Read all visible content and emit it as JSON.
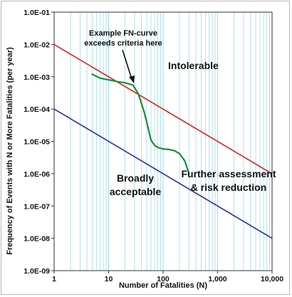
{
  "chart_data": {
    "type": "line",
    "title": "",
    "xlabel": "Number of Fatalities (N)",
    "ylabel": "Frequency of Events with N or More Fatalities (per year)",
    "xscale": "log",
    "yscale": "log",
    "xlim": [
      1,
      10000
    ],
    "ylim": [
      1e-09,
      0.1
    ],
    "x_tick_labels": [
      "1",
      "10",
      "100",
      "1,000",
      "10,000"
    ],
    "y_tick_labels": [
      "1.0E-01",
      "1.0E-02",
      "1.0E-03",
      "1.0E-04",
      "1.0E-05",
      "1.0E-06",
      "1.0E-07",
      "1.0E-08",
      "1.0E-09"
    ],
    "grid": "vertical minor and major lines",
    "series": [
      {
        "color": "#e02020",
        "x": [
          1,
          10000
        ],
        "y": [
          0.01,
          1e-06
        ]
      },
      {
        "color": "#2b2f9e",
        "x": [
          1,
          10000
        ],
        "y": [
          0.0001,
          1e-08
        ]
      },
      {
        "color": "#1e8a3a",
        "x": [
          5,
          7,
          10,
          15,
          20,
          28,
          35,
          40,
          45,
          50,
          55,
          60,
          70,
          80,
          100,
          130,
          160,
          200,
          250,
          300
        ],
        "y": [
          0.0012,
          0.0009,
          0.0008,
          0.0007,
          0.00065,
          0.00055,
          0.0003,
          0.00015,
          8e-05,
          4e-05,
          2e-05,
          1.1e-05,
          7.5e-06,
          6.5e-06,
          5.8e-06,
          5.6e-06,
          5.2e-06,
          4.2e-06,
          2.5e-06,
          1e-06
        ]
      }
    ],
    "annotations": {
      "intolerable": "Intolerable",
      "broadly_line1": "Broadly",
      "broadly_line2": "acceptable",
      "further_line1": "Further assessment",
      "further_line2": "& risk reduction",
      "example_line1": "Example FN-curve",
      "example_line2": "exceeds criteria here"
    },
    "colors": {
      "grid": "#9adce8",
      "axis": "#333333",
      "arrow": "#111111"
    }
  }
}
